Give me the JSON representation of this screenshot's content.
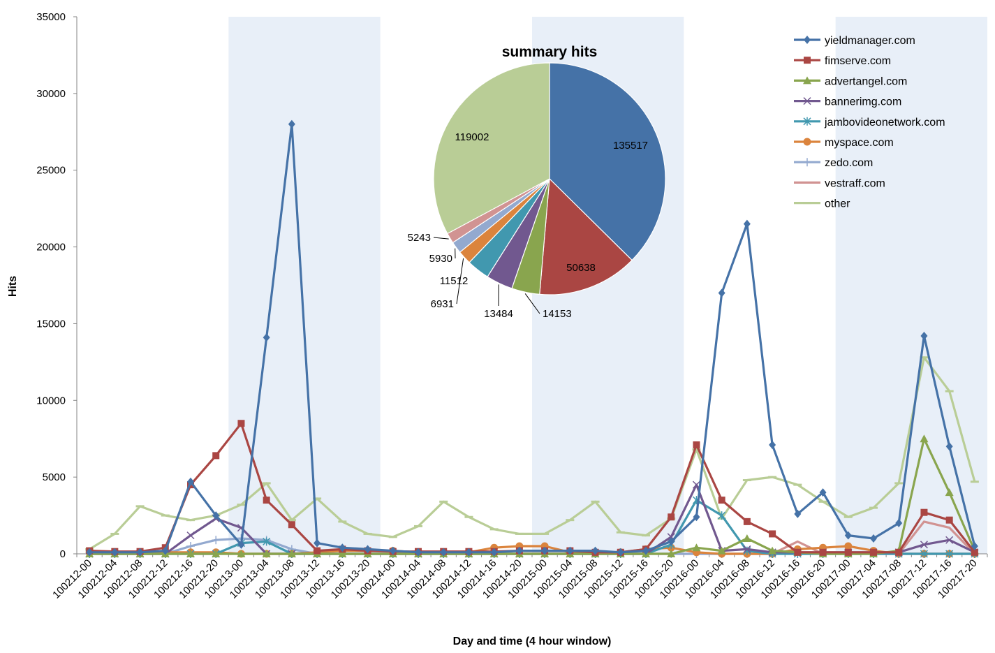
{
  "chart_data": [
    {
      "type": "line",
      "title": "",
      "xlabel": "Day and time (4 hour window)",
      "ylabel": "Hits",
      "ylim": [
        0,
        35000
      ],
      "yticks": [
        0,
        5000,
        10000,
        15000,
        20000,
        25000,
        30000,
        35000
      ],
      "grid": false,
      "shaded_bands": [
        [
          6,
          11
        ],
        [
          18,
          23
        ],
        [
          30,
          35
        ]
      ],
      "legend_position": "top-right",
      "categories": [
        "100212-00",
        "100212-04",
        "100212-08",
        "100212-12",
        "100212-16",
        "100212-20",
        "100213-00",
        "100213-04",
        "100213-08",
        "100213-12",
        "100213-16",
        "100213-20",
        "100214-00",
        "100214-04",
        "100214-08",
        "100214-12",
        "100214-16",
        "100214-20",
        "100215-00",
        "100215-04",
        "100215-08",
        "100215-12",
        "100215-16",
        "100215-20",
        "100216-00",
        "100216-04",
        "100216-08",
        "100216-12",
        "100216-16",
        "100216-20",
        "100217-00",
        "100217-04",
        "100217-08",
        "100217-12",
        "100217-16",
        "100217-20"
      ],
      "series": [
        {
          "name": "yieldmanager.com",
          "color": "#4572a7",
          "marker": "diamond",
          "values": [
            100,
            100,
            100,
            200,
            4700,
            2500,
            600,
            14100,
            28000,
            700,
            400,
            300,
            200,
            100,
            100,
            100,
            100,
            200,
            200,
            200,
            200,
            100,
            200,
            800,
            2400,
            17000,
            21500,
            7100,
            2600,
            4000,
            1200,
            1000,
            2000,
            14200,
            7000,
            500
          ]
        },
        {
          "name": "fimserve.com",
          "color": "#aa4643",
          "marker": "square",
          "values": [
            200,
            150,
            150,
            400,
            4500,
            6400,
            8500,
            3500,
            1900,
            200,
            300,
            200,
            150,
            150,
            150,
            150,
            150,
            200,
            200,
            200,
            100,
            100,
            300,
            2400,
            7100,
            3500,
            2100,
            1300,
            100,
            100,
            100,
            100,
            100,
            2700,
            2200,
            100
          ]
        },
        {
          "name": "advertangel.com",
          "color": "#89a54e",
          "marker": "triangle",
          "values": [
            0,
            0,
            0,
            0,
            0,
            0,
            0,
            0,
            0,
            0,
            0,
            0,
            0,
            0,
            0,
            0,
            0,
            0,
            0,
            0,
            0,
            0,
            0,
            0,
            400,
            200,
            1000,
            200,
            100,
            0,
            0,
            0,
            200,
            7500,
            4000,
            200
          ]
        },
        {
          "name": "bannerimg.com",
          "color": "#71588f",
          "marker": "x",
          "values": [
            0,
            0,
            0,
            0,
            1200,
            2300,
            1700,
            0,
            0,
            0,
            0,
            0,
            0,
            0,
            0,
            0,
            0,
            0,
            0,
            0,
            0,
            0,
            0,
            1100,
            4500,
            200,
            300,
            100,
            100,
            100,
            100,
            100,
            100,
            600,
            900,
            100
          ]
        },
        {
          "name": "jambovideonetwork.com",
          "color": "#4198af",
          "marker": "star",
          "values": [
            0,
            0,
            0,
            0,
            0,
            0,
            700,
            800,
            0,
            0,
            0,
            0,
            0,
            0,
            0,
            0,
            0,
            0,
            0,
            0,
            0,
            0,
            0,
            600,
            3500,
            2500,
            200,
            0,
            0,
            0,
            0,
            0,
            0,
            0,
            0,
            0
          ]
        },
        {
          "name": "myspace.com",
          "color": "#db843d",
          "marker": "circle",
          "values": [
            100,
            100,
            100,
            100,
            100,
            100,
            0,
            0,
            0,
            100,
            200,
            200,
            200,
            100,
            100,
            100,
            400,
            500,
            500,
            100,
            100,
            100,
            300,
            400,
            100,
            0,
            0,
            0,
            300,
            400,
            500,
            200,
            0,
            0,
            0,
            0
          ]
        },
        {
          "name": "zedo.com",
          "color": "#93a9cf",
          "marker": "plus",
          "values": [
            0,
            0,
            0,
            0,
            500,
            900,
            1000,
            900,
            300,
            0,
            0,
            0,
            0,
            0,
            0,
            0,
            0,
            0,
            0,
            0,
            0,
            0,
            0,
            0,
            0,
            0,
            0,
            0,
            0,
            0,
            0,
            0,
            0,
            0,
            0,
            0
          ]
        },
        {
          "name": "vestraff.com",
          "color": "#d19392",
          "marker": "none",
          "values": [
            0,
            0,
            0,
            0,
            0,
            0,
            0,
            0,
            0,
            0,
            0,
            0,
            0,
            0,
            0,
            0,
            0,
            0,
            0,
            0,
            0,
            0,
            0,
            0,
            0,
            0,
            0,
            0,
            800,
            0,
            0,
            0,
            0,
            2100,
            1700,
            0
          ]
        },
        {
          "name": "other",
          "color": "#b9cd96",
          "marker": "dash",
          "values": [
            300,
            1300,
            3100,
            2500,
            2200,
            2500,
            3200,
            4600,
            2200,
            3600,
            2100,
            1300,
            1100,
            1800,
            3400,
            2400,
            1600,
            1300,
            1300,
            2200,
            3400,
            1400,
            1200,
            2300,
            6800,
            2300,
            4800,
            5000,
            4500,
            3400,
            2400,
            3000,
            4600,
            12800,
            10600,
            4700
          ]
        }
      ]
    },
    {
      "type": "pie",
      "title": "summary hits",
      "slices": [
        {
          "name": "yieldmanager.com",
          "value": 135517,
          "color": "#4572a7"
        },
        {
          "name": "fimserve.com",
          "value": 50638,
          "color": "#aa4643"
        },
        {
          "name": "advertangel.com",
          "value": 14153,
          "color": "#89a54e"
        },
        {
          "name": "bannerimg.com",
          "value": 13484,
          "color": "#71588f"
        },
        {
          "name": "jambovideonetwork.com",
          "value": 11512,
          "color": "#4198af"
        },
        {
          "name": "myspace.com",
          "value": 6931,
          "color": "#db843d"
        },
        {
          "name": "zedo.com",
          "value": 5930,
          "color": "#93a9cf"
        },
        {
          "name": "vestraff.com",
          "value": 5243,
          "color": "#d19392"
        },
        {
          "name": "other",
          "value": 119002,
          "color": "#b9cd96"
        }
      ]
    }
  ]
}
